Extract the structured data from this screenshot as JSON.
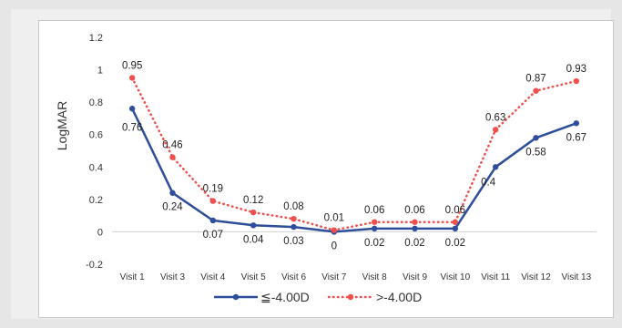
{
  "chart_data": {
    "type": "line",
    "title": "",
    "xlabel": "",
    "ylabel": "LogMAR",
    "ylim": [
      -0.2,
      1.2
    ],
    "yticks": [
      "1.2",
      "1",
      "0.8",
      "0.6",
      "0.4",
      "0.2",
      "0",
      "-0.2"
    ],
    "grid": false,
    "legend_position": "bottom",
    "categories": [
      "Visit 1",
      "Visit 3",
      "Visit 4",
      "Visit 5",
      "Visit 6",
      "Visit 7",
      "Visit 8",
      "Visit 9",
      "Visit 10",
      "Visit 11",
      "Visit 12",
      "Visit 13"
    ],
    "series": [
      {
        "name": "≦-4.00D",
        "color": "#2e4d9a",
        "style": "solid",
        "values": [
          0.76,
          0.24,
          0.07,
          0.04,
          0.03,
          0,
          0.02,
          0.02,
          0.02,
          0.4,
          0.58,
          0.67
        ],
        "labels": [
          "0.76",
          "0.24",
          "0.07",
          "0.04",
          "0.03",
          "0",
          "0.02",
          "0.02",
          "0.02",
          "0.4",
          "0.58",
          "0.67"
        ]
      },
      {
        "name": ">-4.00D",
        "color": "#f0504d",
        "style": "dotted",
        "values": [
          0.95,
          0.46,
          0.19,
          0.12,
          0.08,
          0.01,
          0.06,
          0.06,
          0.06,
          0.63,
          0.87,
          0.93
        ],
        "labels": [
          "0.95",
          "0.46",
          "0.19",
          "0.12",
          "0.08",
          "0.01",
          "0.06",
          "0.06",
          "0.06",
          "0.63",
          "0.87",
          "0.93"
        ]
      }
    ]
  }
}
